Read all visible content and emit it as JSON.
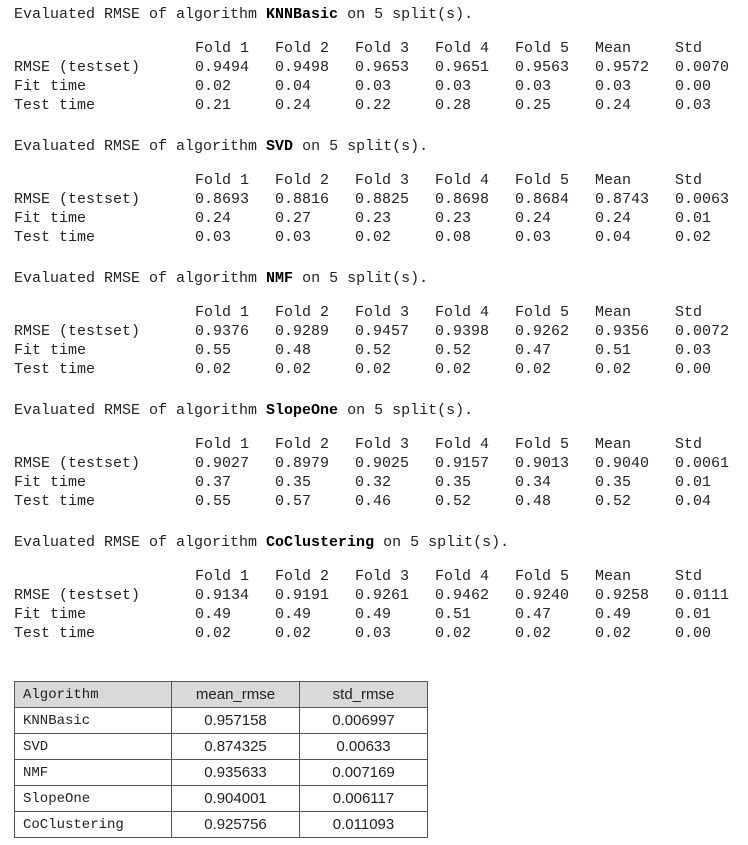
{
  "headline_parts": {
    "prefix": "Evaluated RMSE of algorithm ",
    "suffix": " on 5 split(s)."
  },
  "columns": [
    "Fold 1",
    "Fold 2",
    "Fold 3",
    "Fold 4",
    "Fold 5",
    "Mean",
    "Std"
  ],
  "blocks": [
    {
      "algorithm": "KNNBasic",
      "rows": [
        {
          "label": "RMSE (testset)",
          "values": [
            "0.9494",
            "0.9498",
            "0.9653",
            "0.9651",
            "0.9563",
            "0.9572",
            "0.0070"
          ]
        },
        {
          "label": "Fit time",
          "values": [
            "0.02",
            "0.04",
            "0.03",
            "0.03",
            "0.03",
            "0.03",
            "0.00"
          ]
        },
        {
          "label": "Test time",
          "values": [
            "0.21",
            "0.24",
            "0.22",
            "0.28",
            "0.25",
            "0.24",
            "0.03"
          ]
        }
      ]
    },
    {
      "algorithm": "SVD",
      "rows": [
        {
          "label": "RMSE (testset)",
          "values": [
            "0.8693",
            "0.8816",
            "0.8825",
            "0.8698",
            "0.8684",
            "0.8743",
            "0.0063"
          ]
        },
        {
          "label": "Fit time",
          "values": [
            "0.24",
            "0.27",
            "0.23",
            "0.23",
            "0.24",
            "0.24",
            "0.01"
          ]
        },
        {
          "label": "Test time",
          "values": [
            "0.03",
            "0.03",
            "0.02",
            "0.08",
            "0.03",
            "0.04",
            "0.02"
          ]
        }
      ]
    },
    {
      "algorithm": "NMF",
      "rows": [
        {
          "label": "RMSE (testset)",
          "values": [
            "0.9376",
            "0.9289",
            "0.9457",
            "0.9398",
            "0.9262",
            "0.9356",
            "0.0072"
          ]
        },
        {
          "label": "Fit time",
          "values": [
            "0.55",
            "0.48",
            "0.52",
            "0.52",
            "0.47",
            "0.51",
            "0.03"
          ]
        },
        {
          "label": "Test time",
          "values": [
            "0.02",
            "0.02",
            "0.02",
            "0.02",
            "0.02",
            "0.02",
            "0.00"
          ]
        }
      ]
    },
    {
      "algorithm": "SlopeOne",
      "rows": [
        {
          "label": "RMSE (testset)",
          "values": [
            "0.9027",
            "0.8979",
            "0.9025",
            "0.9157",
            "0.9013",
            "0.9040",
            "0.0061"
          ]
        },
        {
          "label": "Fit time",
          "values": [
            "0.37",
            "0.35",
            "0.32",
            "0.35",
            "0.34",
            "0.35",
            "0.01"
          ]
        },
        {
          "label": "Test time",
          "values": [
            "0.55",
            "0.57",
            "0.46",
            "0.52",
            "0.48",
            "0.52",
            "0.04"
          ]
        }
      ]
    },
    {
      "algorithm": "CoClustering",
      "rows": [
        {
          "label": "RMSE (testset)",
          "values": [
            "0.9134",
            "0.9191",
            "0.9261",
            "0.9462",
            "0.9240",
            "0.9258",
            "0.0111"
          ]
        },
        {
          "label": "Fit time",
          "values": [
            "0.49",
            "0.49",
            "0.49",
            "0.51",
            "0.47",
            "0.49",
            "0.01"
          ]
        },
        {
          "label": "Test time",
          "values": [
            "0.02",
            "0.02",
            "0.03",
            "0.02",
            "0.02",
            "0.02",
            "0.00"
          ]
        }
      ]
    }
  ],
  "summary": {
    "headers": [
      "Algorithm",
      "mean_rmse",
      "std_rmse"
    ],
    "rows": [
      [
        "KNNBasic",
        "0.957158",
        "0.006997"
      ],
      [
        "SVD",
        "0.874325",
        "0.00633"
      ],
      [
        "NMF",
        "0.935633",
        "0.007169"
      ],
      [
        "SlopeOne",
        "0.904001",
        "0.006117"
      ],
      [
        "CoClustering",
        "0.925756",
        "0.011093"
      ]
    ]
  }
}
